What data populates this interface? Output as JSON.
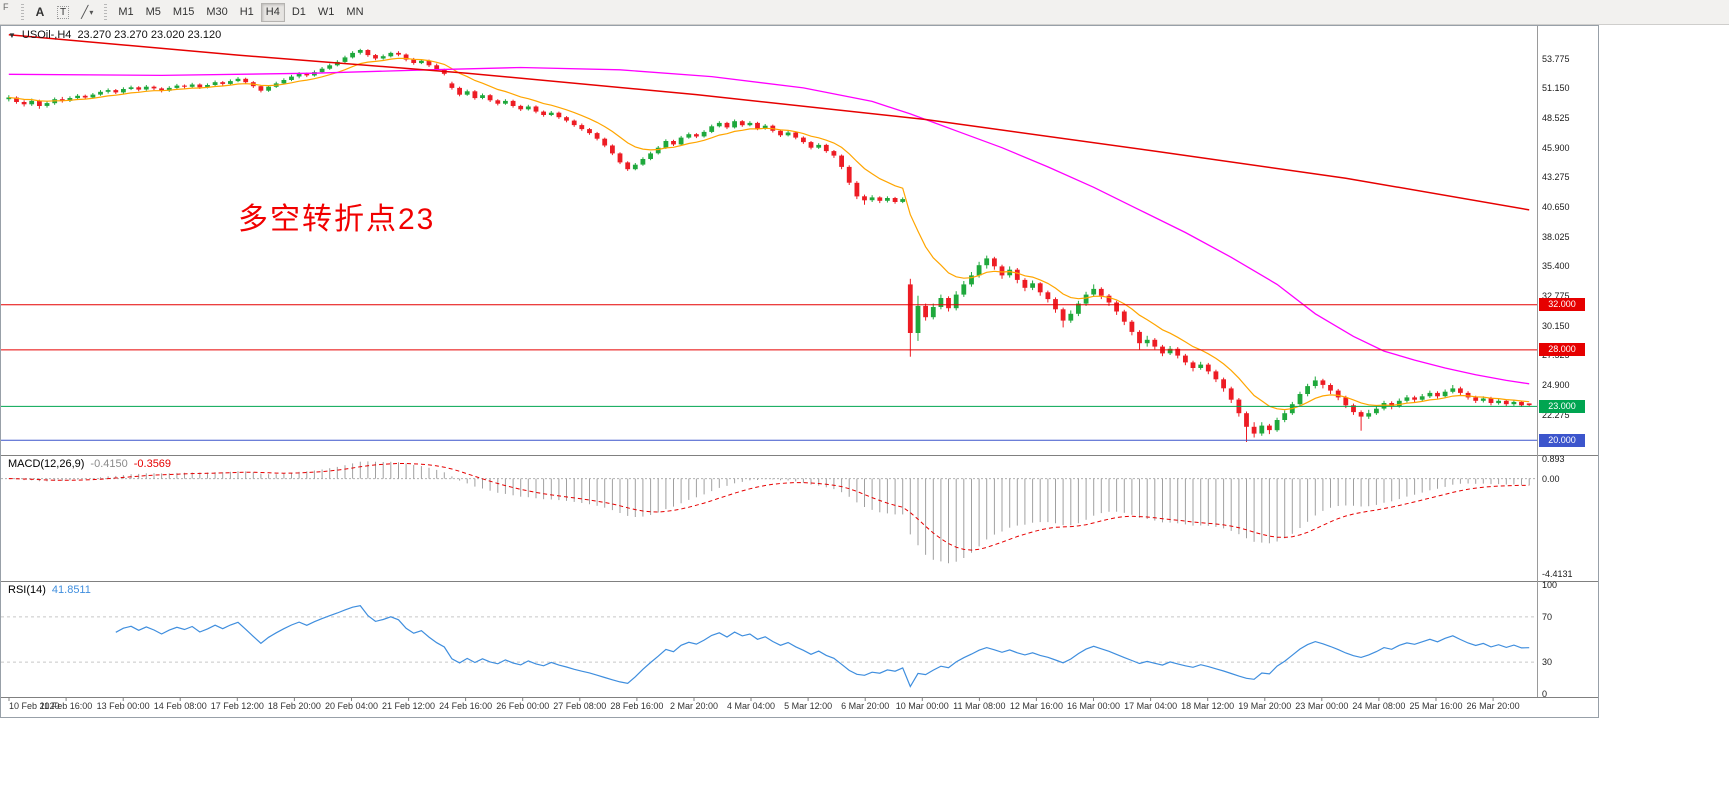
{
  "toolbar": {
    "fragment_label": "F",
    "tools": [
      {
        "name": "text-tool",
        "glyph": "A"
      },
      {
        "name": "label-tool",
        "glyph": "T"
      },
      {
        "name": "trendline-tool",
        "glyph": "╱"
      }
    ],
    "dropdown_glyph": "▾",
    "timeframes": [
      "M1",
      "M5",
      "M15",
      "M30",
      "H1",
      "H4",
      "D1",
      "W1",
      "MN"
    ],
    "active_timeframe": "H4"
  },
  "quote_bar": {
    "collapse_glyph": "▼",
    "symbol_period": "USOil-,H4",
    "ohlc": "23.270 23.270 23.020 23.120"
  },
  "macd": {
    "label": "MACD(12,26,9)",
    "main_value": "-0.4150",
    "signal_value": "-0.3569",
    "axis_labels": [
      "0.893",
      "0.00",
      "-4.4131"
    ]
  },
  "rsi": {
    "label": "RSI(14)",
    "value": "41.8511",
    "levels": [
      70,
      30
    ],
    "axis_labels": [
      "100",
      "70",
      "30",
      "0"
    ]
  },
  "chart_data": {
    "type": "candlestick",
    "symbol": "USOil-",
    "timeframe": "H4",
    "price_range": [
      18.7,
      56.5
    ],
    "y_ticks": [
      "53.775",
      "51.150",
      "48.525",
      "45.900",
      "43.275",
      "40.650",
      "38.025",
      "35.400",
      "32.775",
      "30.150",
      "27.525",
      "24.900",
      "22.275"
    ],
    "x_labels": [
      "10 Feb 2020",
      "11 Feb 16:00",
      "13 Feb 00:00",
      "14 Feb 08:00",
      "17 Feb 12:00",
      "18 Feb 20:00",
      "20 Feb 04:00",
      "21 Feb 12:00",
      "24 Feb 16:00",
      "26 Feb 00:00",
      "27 Feb 08:00",
      "28 Feb 16:00",
      "2 Mar 20:00",
      "4 Mar 04:00",
      "5 Mar 12:00",
      "6 Mar 20:00",
      "10 Mar 00:00",
      "11 Mar 08:00",
      "12 Mar 16:00",
      "16 Mar 00:00",
      "17 Mar 04:00",
      "18 Mar 12:00",
      "19 Mar 20:00",
      "23 Mar 00:00",
      "24 Mar 08:00",
      "25 Mar 16:00",
      "26 Mar 20:00"
    ],
    "hlines": [
      {
        "price": 32.0,
        "label": "32.000",
        "color": "#e60000"
      },
      {
        "price": 28.0,
        "label": "28.000",
        "color": "#e60000"
      },
      {
        "price": 23.0,
        "label": "23.000",
        "color": "#00a551"
      },
      {
        "price": 20.0,
        "label": "20.000",
        "color": "#3c55cc"
      }
    ],
    "annotation": {
      "text": "多空转折点23",
      "color": "#f10000"
    },
    "colors": {
      "up": "#1fa83c",
      "down": "#ed1c24",
      "ma_fast": "#ffa500",
      "ma_mid": "#ff00ff",
      "ma_slow": "#e60000",
      "macd_hist": "#a0a0a0",
      "macd_signal": "#e60000",
      "rsi": "#3f8ede"
    },
    "macd_range": [
      1.0,
      -4.7
    ],
    "ma_fast_period": 10,
    "ma_mid_points": [
      [
        0,
        52.4
      ],
      [
        20,
        52.3
      ],
      [
        40,
        52.5
      ],
      [
        55,
        52.8
      ],
      [
        67,
        53.0
      ],
      [
        80,
        52.8
      ],
      [
        92,
        52.2
      ],
      [
        104,
        51.2
      ],
      [
        113,
        50.0
      ],
      [
        118,
        48.9
      ],
      [
        124,
        47.4
      ],
      [
        130,
        45.9
      ],
      [
        136,
        44.2
      ],
      [
        142,
        42.4
      ],
      [
        148,
        40.4
      ],
      [
        154,
        38.4
      ],
      [
        160,
        36.2
      ],
      [
        166,
        33.8
      ],
      [
        171,
        31.2
      ],
      [
        176,
        29.2
      ],
      [
        180,
        27.9
      ],
      [
        184,
        27.1
      ],
      [
        188,
        26.4
      ],
      [
        192,
        25.8
      ],
      [
        196,
        25.3
      ],
      [
        199,
        25.0
      ]
    ],
    "ma_slow_points": [
      [
        0,
        55.9
      ],
      [
        30,
        54.1
      ],
      [
        60,
        52.5
      ],
      [
        90,
        50.6
      ],
      [
        120,
        48.4
      ],
      [
        150,
        45.6
      ],
      [
        175,
        43.2
      ],
      [
        199,
        40.4
      ]
    ],
    "candles": [
      [
        50.2,
        50.55,
        50.0,
        50.35
      ],
      [
        50.35,
        50.45,
        49.8,
        49.95
      ],
      [
        49.95,
        50.1,
        49.55,
        49.75
      ],
      [
        49.75,
        50.25,
        49.6,
        50.05
      ],
      [
        50.05,
        50.15,
        49.35,
        49.6
      ],
      [
        49.6,
        50.0,
        49.45,
        49.85
      ],
      [
        49.85,
        50.35,
        49.7,
        50.2
      ],
      [
        50.2,
        50.4,
        49.9,
        50.05
      ],
      [
        50.05,
        50.45,
        49.95,
        50.3
      ],
      [
        50.3,
        50.65,
        50.15,
        50.5
      ],
      [
        50.5,
        50.6,
        50.2,
        50.35
      ],
      [
        50.35,
        50.75,
        50.25,
        50.6
      ],
      [
        50.6,
        51.0,
        50.5,
        50.85
      ],
      [
        50.85,
        51.15,
        50.7,
        51.0
      ],
      [
        51.0,
        51.1,
        50.65,
        50.8
      ],
      [
        50.8,
        51.25,
        50.7,
        51.1
      ],
      [
        51.1,
        51.4,
        51.0,
        51.25
      ],
      [
        51.25,
        51.35,
        50.9,
        51.05
      ],
      [
        51.05,
        51.45,
        50.95,
        51.3
      ],
      [
        51.3,
        51.4,
        51.0,
        51.15
      ],
      [
        51.15,
        51.25,
        50.8,
        50.95
      ],
      [
        50.95,
        51.35,
        50.85,
        51.2
      ],
      [
        51.2,
        51.55,
        51.1,
        51.4
      ],
      [
        51.4,
        51.5,
        51.15,
        51.3
      ],
      [
        51.3,
        51.65,
        51.2,
        51.5
      ],
      [
        51.5,
        51.6,
        51.1,
        51.25
      ],
      [
        51.25,
        51.6,
        51.15,
        51.45
      ],
      [
        51.45,
        51.85,
        51.35,
        51.7
      ],
      [
        51.7,
        51.8,
        51.4,
        51.55
      ],
      [
        51.55,
        51.95,
        51.45,
        51.8
      ],
      [
        51.8,
        52.15,
        51.7,
        52.0
      ],
      [
        52.0,
        52.1,
        51.55,
        51.7
      ],
      [
        51.7,
        51.8,
        51.2,
        51.35
      ],
      [
        51.35,
        51.45,
        50.8,
        50.95
      ],
      [
        50.95,
        51.45,
        50.85,
        51.3
      ],
      [
        51.3,
        51.75,
        51.2,
        51.6
      ],
      [
        51.6,
        52.05,
        51.5,
        51.9
      ],
      [
        51.9,
        52.35,
        51.8,
        52.2
      ],
      [
        52.2,
        52.6,
        52.05,
        52.45
      ],
      [
        52.45,
        52.55,
        52.15,
        52.3
      ],
      [
        52.3,
        52.75,
        52.2,
        52.6
      ],
      [
        52.6,
        53.05,
        52.5,
        52.9
      ],
      [
        52.9,
        53.35,
        52.8,
        53.2
      ],
      [
        53.2,
        53.65,
        53.1,
        53.5
      ],
      [
        53.5,
        54.05,
        53.4,
        53.9
      ],
      [
        53.9,
        54.45,
        53.8,
        54.3
      ],
      [
        54.3,
        54.66,
        54.15,
        54.55
      ],
      [
        54.55,
        54.62,
        53.95,
        54.1
      ],
      [
        54.1,
        54.2,
        53.65,
        53.8
      ],
      [
        53.8,
        54.15,
        53.7,
        54.0
      ],
      [
        54.0,
        54.4,
        53.9,
        54.3
      ],
      [
        54.3,
        54.45,
        54.0,
        54.15
      ],
      [
        54.15,
        54.25,
        53.55,
        53.7
      ],
      [
        53.7,
        53.85,
        53.25,
        53.4
      ],
      [
        53.4,
        53.75,
        53.3,
        53.6
      ],
      [
        53.6,
        53.7,
        53.05,
        53.2
      ],
      [
        53.2,
        53.35,
        52.65,
        52.8
      ],
      [
        52.8,
        52.9,
        52.3,
        52.45
      ],
      [
        51.6,
        51.75,
        51.05,
        51.2
      ],
      [
        51.2,
        51.3,
        50.45,
        50.6
      ],
      [
        50.6,
        51.05,
        50.5,
        50.9
      ],
      [
        50.9,
        51.0,
        50.15,
        50.3
      ],
      [
        50.3,
        50.7,
        50.2,
        50.55
      ],
      [
        50.55,
        50.65,
        49.95,
        50.1
      ],
      [
        50.1,
        50.2,
        49.65,
        49.8
      ],
      [
        49.8,
        50.2,
        49.7,
        50.05
      ],
      [
        50.05,
        50.15,
        49.45,
        49.6
      ],
      [
        49.6,
        49.7,
        49.15,
        49.3
      ],
      [
        49.3,
        49.7,
        49.2,
        49.55
      ],
      [
        49.55,
        49.65,
        48.95,
        49.1
      ],
      [
        49.1,
        49.2,
        48.65,
        48.8
      ],
      [
        48.8,
        49.15,
        48.7,
        49.0
      ],
      [
        49.0,
        49.1,
        48.45,
        48.6
      ],
      [
        48.6,
        48.7,
        48.15,
        48.3
      ],
      [
        48.3,
        48.4,
        47.75,
        47.9
      ],
      [
        47.9,
        48.05,
        47.4,
        47.55
      ],
      [
        47.55,
        47.65,
        47.05,
        47.2
      ],
      [
        47.2,
        47.3,
        46.55,
        46.7
      ],
      [
        46.7,
        46.8,
        45.95,
        46.1
      ],
      [
        46.1,
        46.2,
        45.25,
        45.4
      ],
      [
        45.4,
        45.5,
        44.45,
        44.6
      ],
      [
        44.6,
        44.7,
        43.85,
        44.0
      ],
      [
        44.0,
        44.55,
        43.9,
        44.4
      ],
      [
        44.4,
        45.05,
        44.3,
        44.9
      ],
      [
        44.9,
        45.55,
        44.8,
        45.4
      ],
      [
        45.4,
        46.05,
        45.3,
        45.9
      ],
      [
        45.9,
        46.65,
        45.8,
        46.5
      ],
      [
        46.5,
        46.6,
        46.05,
        46.2
      ],
      [
        46.2,
        46.95,
        46.1,
        46.8
      ],
      [
        46.8,
        47.25,
        46.7,
        47.1
      ],
      [
        47.1,
        47.2,
        46.75,
        46.9
      ],
      [
        46.9,
        47.45,
        46.8,
        47.3
      ],
      [
        47.3,
        47.95,
        47.2,
        47.8
      ],
      [
        47.8,
        48.25,
        47.7,
        48.1
      ],
      [
        48.1,
        48.2,
        47.55,
        47.7
      ],
      [
        47.7,
        48.4,
        47.6,
        48.25
      ],
      [
        48.25,
        48.35,
        47.75,
        47.9
      ],
      [
        47.9,
        48.25,
        47.8,
        48.1
      ],
      [
        48.1,
        48.2,
        47.45,
        47.6
      ],
      [
        47.6,
        48.0,
        47.5,
        47.85
      ],
      [
        47.85,
        47.95,
        47.25,
        47.4
      ],
      [
        47.4,
        47.5,
        46.85,
        47.0
      ],
      [
        47.0,
        47.4,
        46.9,
        47.25
      ],
      [
        47.25,
        47.35,
        46.65,
        46.8
      ],
      [
        46.8,
        46.9,
        46.25,
        46.4
      ],
      [
        46.4,
        46.5,
        45.75,
        45.9
      ],
      [
        45.9,
        46.3,
        45.8,
        46.15
      ],
      [
        46.15,
        46.25,
        45.45,
        45.6
      ],
      [
        45.6,
        45.7,
        45.0,
        45.2
      ],
      [
        45.2,
        45.3,
        44.0,
        44.2
      ],
      [
        44.2,
        44.35,
        42.6,
        42.8
      ],
      [
        42.8,
        42.95,
        41.35,
        41.6
      ],
      [
        41.6,
        41.75,
        40.85,
        41.25
      ],
      [
        41.25,
        41.7,
        41.1,
        41.5
      ],
      [
        41.5,
        41.6,
        41.0,
        41.2
      ],
      [
        41.2,
        41.6,
        41.05,
        41.45
      ],
      [
        41.45,
        41.55,
        40.95,
        41.1
      ],
      [
        41.1,
        41.5,
        41.0,
        41.35
      ],
      [
        33.8,
        34.3,
        27.4,
        29.5
      ],
      [
        29.5,
        32.8,
        28.8,
        31.9
      ],
      [
        31.9,
        32.1,
        30.6,
        30.9
      ],
      [
        30.9,
        32.1,
        30.7,
        31.8
      ],
      [
        31.8,
        32.9,
        31.6,
        32.6
      ],
      [
        32.6,
        32.75,
        31.4,
        31.7
      ],
      [
        31.7,
        33.2,
        31.5,
        32.9
      ],
      [
        32.9,
        34.1,
        32.7,
        33.8
      ],
      [
        33.8,
        34.9,
        33.6,
        34.6
      ],
      [
        34.6,
        35.8,
        34.4,
        35.5
      ],
      [
        35.5,
        36.35,
        35.2,
        36.1
      ],
      [
        36.1,
        36.25,
        35.1,
        35.4
      ],
      [
        35.4,
        35.55,
        34.3,
        34.6
      ],
      [
        34.6,
        35.4,
        34.4,
        35.1
      ],
      [
        35.1,
        35.25,
        33.9,
        34.2
      ],
      [
        34.2,
        34.35,
        33.2,
        33.5
      ],
      [
        33.5,
        34.15,
        33.3,
        33.9
      ],
      [
        33.9,
        34.0,
        32.8,
        33.1
      ],
      [
        33.1,
        33.25,
        32.2,
        32.5
      ],
      [
        32.5,
        32.65,
        31.3,
        31.6
      ],
      [
        31.6,
        31.75,
        30.0,
        30.6
      ],
      [
        30.6,
        31.5,
        30.4,
        31.2
      ],
      [
        31.2,
        32.35,
        31.0,
        32.1
      ],
      [
        32.1,
        33.15,
        31.9,
        32.9
      ],
      [
        32.9,
        33.8,
        32.7,
        33.4
      ],
      [
        33.4,
        33.55,
        32.5,
        32.8
      ],
      [
        32.8,
        32.95,
        31.9,
        32.2
      ],
      [
        32.2,
        32.35,
        31.1,
        31.4
      ],
      [
        31.4,
        31.55,
        30.2,
        30.5
      ],
      [
        30.5,
        30.65,
        29.3,
        29.6
      ],
      [
        29.6,
        29.75,
        28.05,
        28.6
      ],
      [
        28.6,
        29.25,
        28.3,
        28.9
      ],
      [
        28.9,
        29.05,
        28.05,
        28.3
      ],
      [
        28.3,
        28.45,
        27.45,
        27.7
      ],
      [
        27.7,
        28.35,
        27.55,
        28.1
      ],
      [
        28.1,
        28.25,
        27.25,
        27.5
      ],
      [
        27.5,
        27.65,
        26.65,
        26.9
      ],
      [
        26.9,
        27.05,
        26.1,
        26.4
      ],
      [
        26.4,
        26.95,
        26.25,
        26.7
      ],
      [
        26.7,
        26.85,
        25.85,
        26.1
      ],
      [
        26.1,
        26.25,
        25.15,
        25.4
      ],
      [
        25.4,
        25.55,
        24.3,
        24.6
      ],
      [
        24.6,
        24.75,
        23.3,
        23.6
      ],
      [
        23.6,
        23.75,
        22.1,
        22.4
      ],
      [
        22.4,
        22.55,
        19.85,
        21.2
      ],
      [
        21.2,
        21.6,
        20.25,
        20.6
      ],
      [
        20.6,
        21.6,
        20.4,
        21.3
      ],
      [
        21.3,
        21.45,
        20.55,
        20.9
      ],
      [
        20.9,
        22.0,
        20.75,
        21.8
      ],
      [
        21.8,
        22.65,
        21.6,
        22.4
      ],
      [
        22.4,
        23.4,
        22.25,
        23.2
      ],
      [
        23.2,
        24.3,
        23.05,
        24.1
      ],
      [
        24.1,
        25.0,
        23.9,
        24.8
      ],
      [
        24.8,
        25.65,
        24.6,
        25.3
      ],
      [
        25.3,
        25.45,
        24.6,
        24.9
      ],
      [
        24.9,
        25.05,
        24.1,
        24.4
      ],
      [
        24.4,
        24.55,
        23.55,
        23.8
      ],
      [
        23.8,
        23.95,
        22.85,
        23.1
      ],
      [
        23.1,
        23.25,
        22.25,
        22.5
      ],
      [
        22.5,
        22.65,
        20.85,
        22.1
      ],
      [
        22.1,
        22.7,
        21.9,
        22.4
      ],
      [
        22.4,
        23.0,
        22.25,
        22.8
      ],
      [
        22.8,
        23.5,
        22.65,
        23.3
      ],
      [
        23.3,
        23.45,
        22.75,
        23.0
      ],
      [
        23.0,
        23.7,
        22.9,
        23.5
      ],
      [
        23.5,
        24.0,
        23.35,
        23.8
      ],
      [
        23.8,
        23.95,
        23.35,
        23.6
      ],
      [
        23.6,
        24.1,
        23.45,
        23.9
      ],
      [
        23.9,
        24.4,
        23.75,
        24.2
      ],
      [
        24.2,
        24.35,
        23.7,
        23.9
      ],
      [
        23.9,
        24.5,
        23.8,
        24.3
      ],
      [
        24.3,
        24.9,
        24.15,
        24.6
      ],
      [
        24.6,
        24.75,
        24.0,
        24.2
      ],
      [
        24.2,
        24.35,
        23.6,
        23.8
      ],
      [
        23.8,
        23.95,
        23.3,
        23.5
      ],
      [
        23.5,
        23.9,
        23.35,
        23.7
      ],
      [
        23.7,
        23.85,
        23.1,
        23.3
      ],
      [
        23.3,
        23.65,
        23.15,
        23.5
      ],
      [
        23.5,
        23.6,
        23.0,
        23.2
      ],
      [
        23.2,
        23.55,
        23.05,
        23.4
      ],
      [
        23.4,
        23.5,
        22.95,
        23.1
      ],
      [
        23.27,
        23.27,
        23.02,
        23.12
      ]
    ]
  }
}
